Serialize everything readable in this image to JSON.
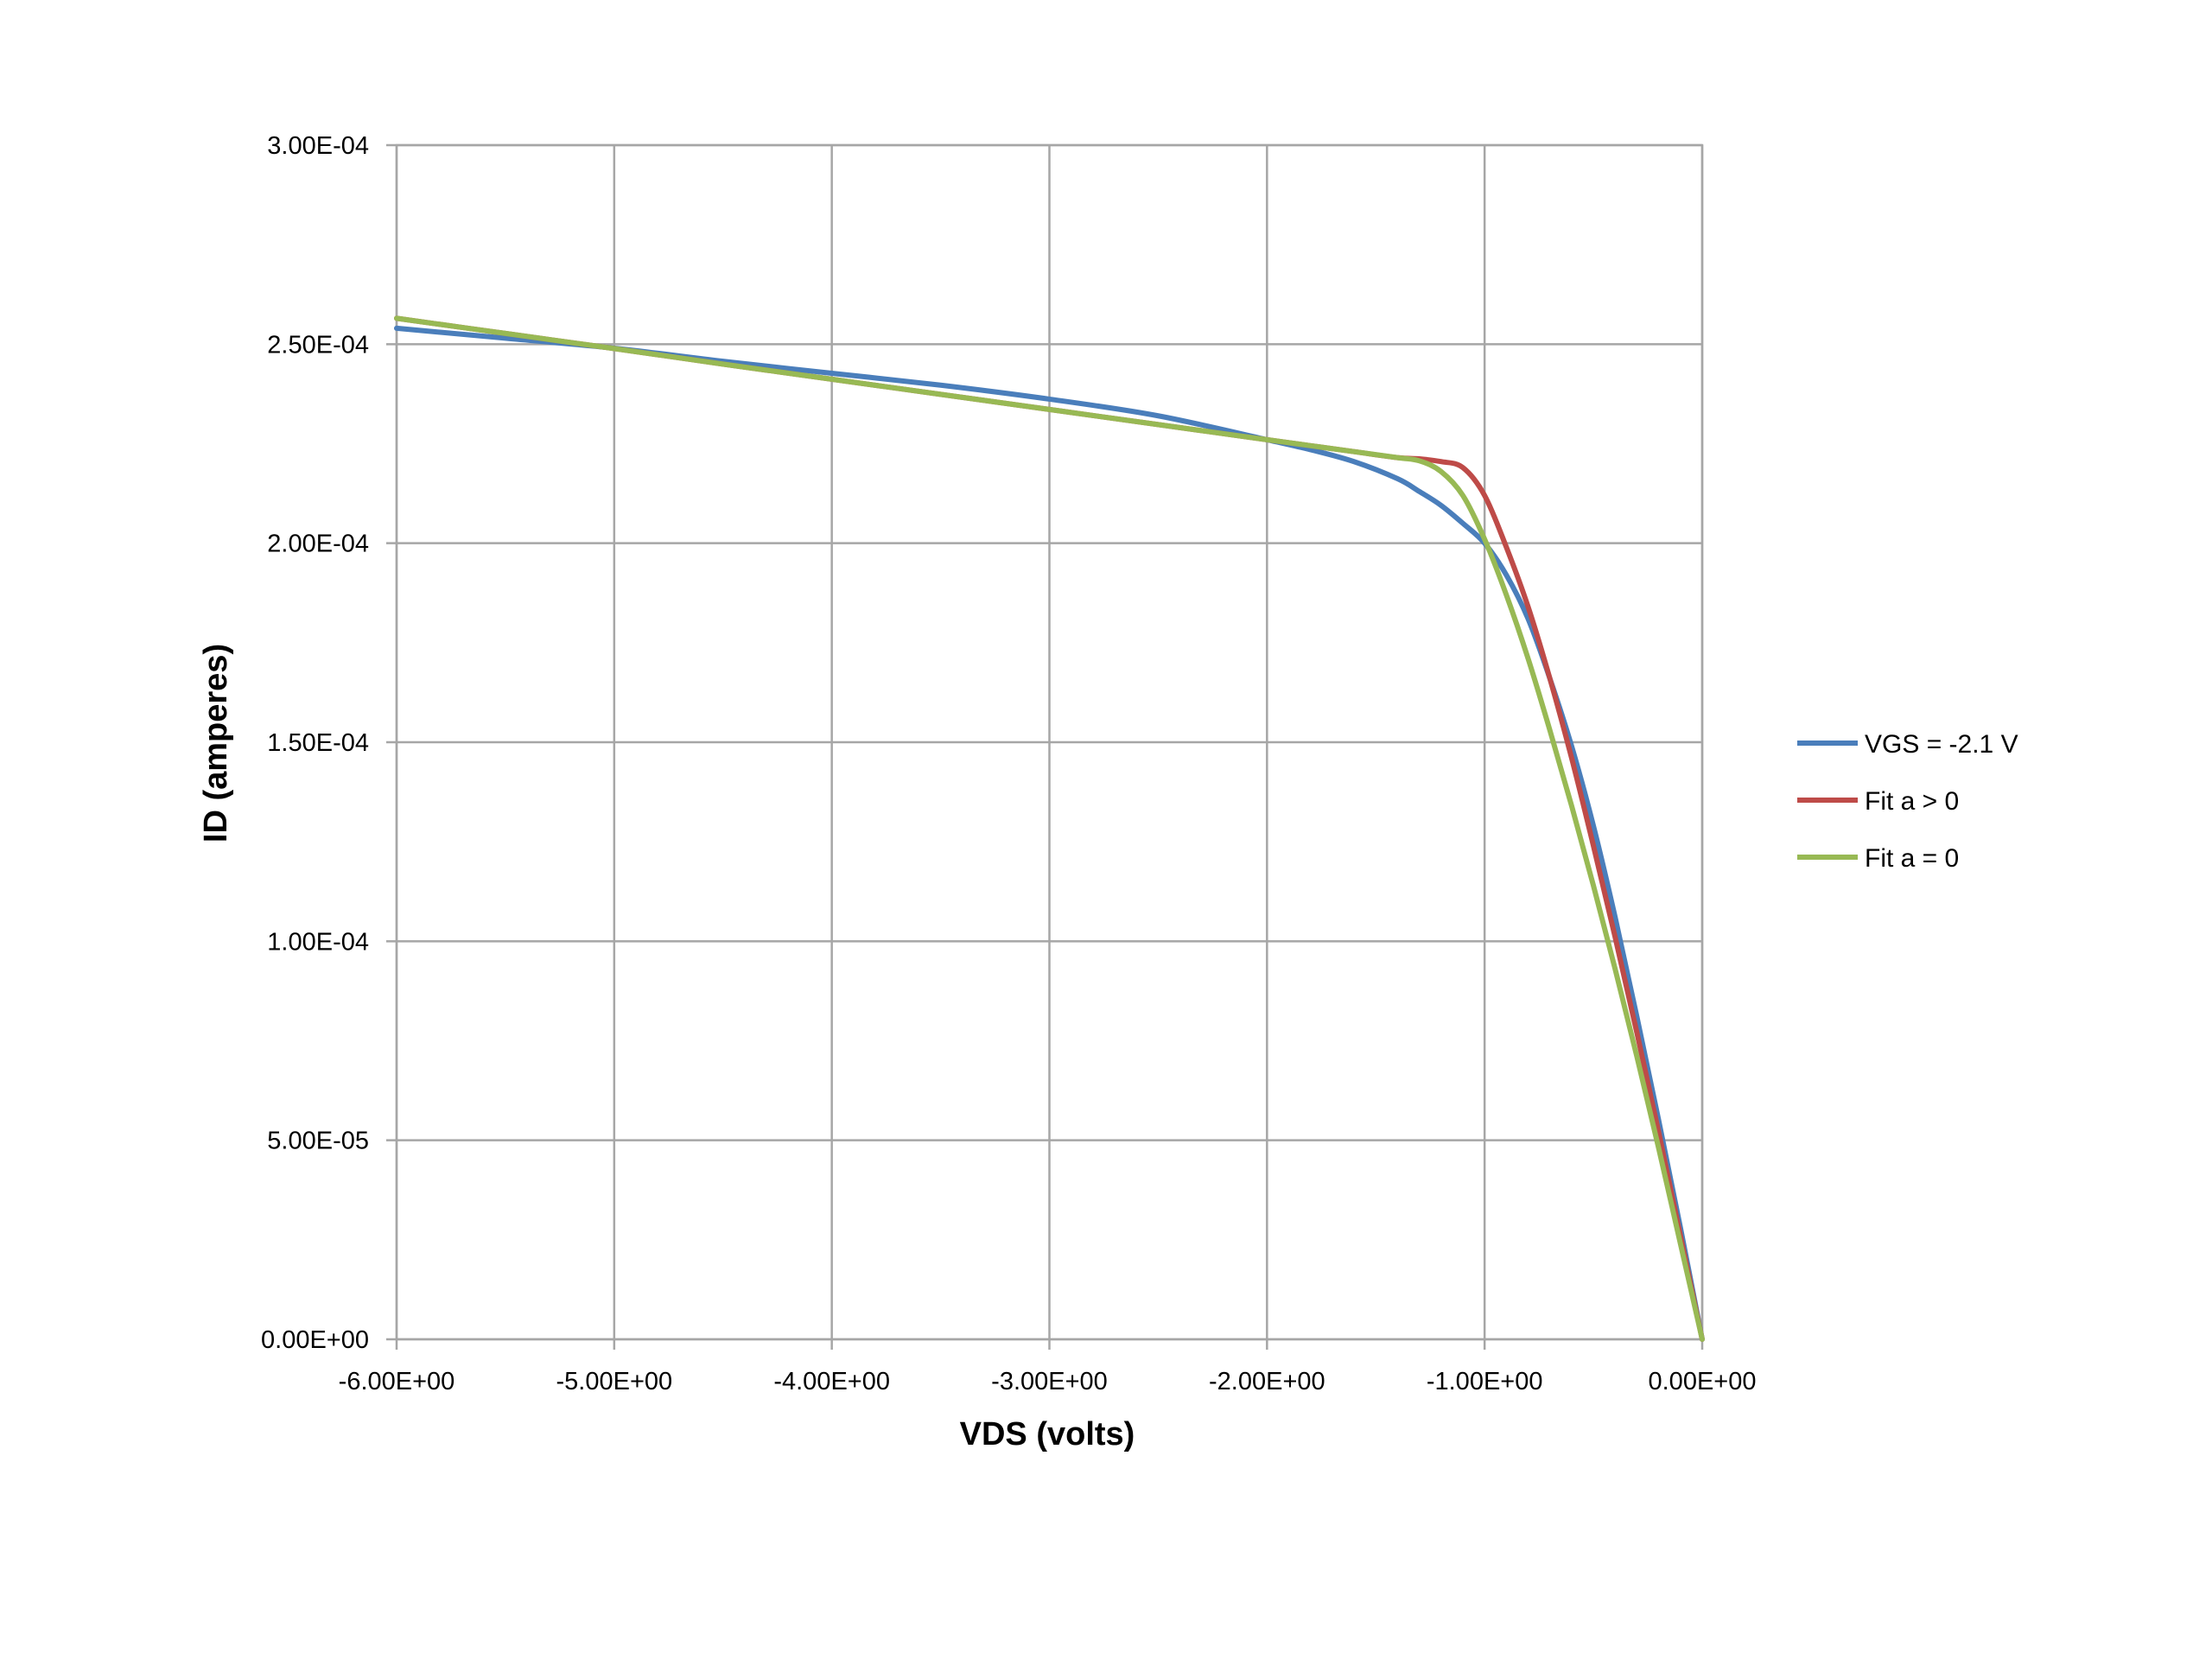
{
  "chart_data": {
    "type": "line",
    "title": "",
    "xlabel": "VDS (volts)",
    "ylabel": "ID (amperes)",
    "xlim": [
      -6,
      0
    ],
    "ylim": [
      0,
      0.0003
    ],
    "x_ticks": [
      -6,
      -5,
      -4,
      -3,
      -2,
      -1,
      0
    ],
    "x_tick_labels": [
      "-6.00E+00",
      "-5.00E+00",
      "-4.00E+00",
      "-3.00E+00",
      "-2.00E+00",
      "-1.00E+00",
      "0.00E+00"
    ],
    "y_ticks": [
      0,
      5e-05,
      0.0001,
      0.00015,
      0.0002,
      0.00025,
      0.0003
    ],
    "y_tick_labels": [
      "0.00E+00",
      "5.00E-05",
      "1.00E-04",
      "1.50E-04",
      "2.00E-04",
      "2.50E-04",
      "3.00E-04"
    ],
    "grid": true,
    "legend_position": "right",
    "series": [
      {
        "name": "VGS = -2.1 V",
        "color": "#4a7ebb",
        "x": [
          -6.0,
          -5.5,
          -5.0,
          -4.5,
          -4.0,
          -3.5,
          -3.0,
          -2.5,
          -2.0,
          -1.8,
          -1.6,
          -1.4,
          -1.3,
          -1.2,
          -1.1,
          -1.0,
          -0.9,
          -0.8,
          -0.7,
          -0.6,
          -0.5,
          -0.4,
          -0.3,
          -0.2,
          -0.1,
          0.0
        ],
        "y": [
          0.000254,
          0.0002515,
          0.000249,
          0.0002457,
          0.0002427,
          0.0002397,
          0.0002362,
          0.000232,
          0.000226,
          0.0002235,
          0.0002205,
          0.0002162,
          0.000213,
          0.0002095,
          0.000205,
          0.0002,
          0.000192,
          0.000181,
          0.000166,
          0.000149,
          0.000129,
          0.000106,
          8.1e-05,
          5.5e-05,
          2.8e-05,
          0.0
        ]
      },
      {
        "name": "Fit a > 0",
        "color": "#be4b48",
        "x": [
          -6.0,
          -5.5,
          -5.0,
          -4.5,
          -4.0,
          -3.5,
          -3.0,
          -2.5,
          -2.0,
          -1.8,
          -1.6,
          -1.4,
          -1.3,
          -1.2,
          -1.1,
          -1.0,
          -0.9,
          -0.8,
          -0.7,
          -0.6,
          -0.5,
          -0.4,
          -0.3,
          -0.2,
          -0.1,
          0.0
        ],
        "y": [
          0.0002565,
          0.0002527,
          0.0002489,
          0.000245,
          0.0002412,
          0.0002374,
          0.0002336,
          0.0002298,
          0.000226,
          0.0002245,
          0.000223,
          0.0002215,
          0.0002212,
          0.0002205,
          0.000219,
          0.000212,
          0.000199,
          0.000184,
          0.000166,
          0.000146,
          0.000124,
          0.000101,
          7.7e-05,
          5.2e-05,
          2.6e-05,
          0.0
        ]
      },
      {
        "name": "Fit a = 0",
        "color": "#98b954",
        "x": [
          -6.0,
          -5.5,
          -5.0,
          -4.5,
          -4.0,
          -3.5,
          -3.0,
          -2.5,
          -2.0,
          -1.8,
          -1.6,
          -1.4,
          -1.3,
          -1.2,
          -1.1,
          -1.0,
          -0.9,
          -0.8,
          -0.7,
          -0.6,
          -0.5,
          -0.4,
          -0.3,
          -0.2,
          -0.1,
          0.0
        ],
        "y": [
          0.0002565,
          0.0002527,
          0.0002489,
          0.000245,
          0.0002412,
          0.0002374,
          0.0002336,
          0.0002298,
          0.000226,
          0.0002245,
          0.000223,
          0.0002215,
          0.0002207,
          0.000218,
          0.000212,
          0.000201,
          0.000187,
          0.000171,
          0.000153,
          0.000134,
          0.000114,
          9.3e-05,
          7.1e-05,
          4.8e-05,
          2.4e-05,
          0.0
        ]
      }
    ]
  }
}
